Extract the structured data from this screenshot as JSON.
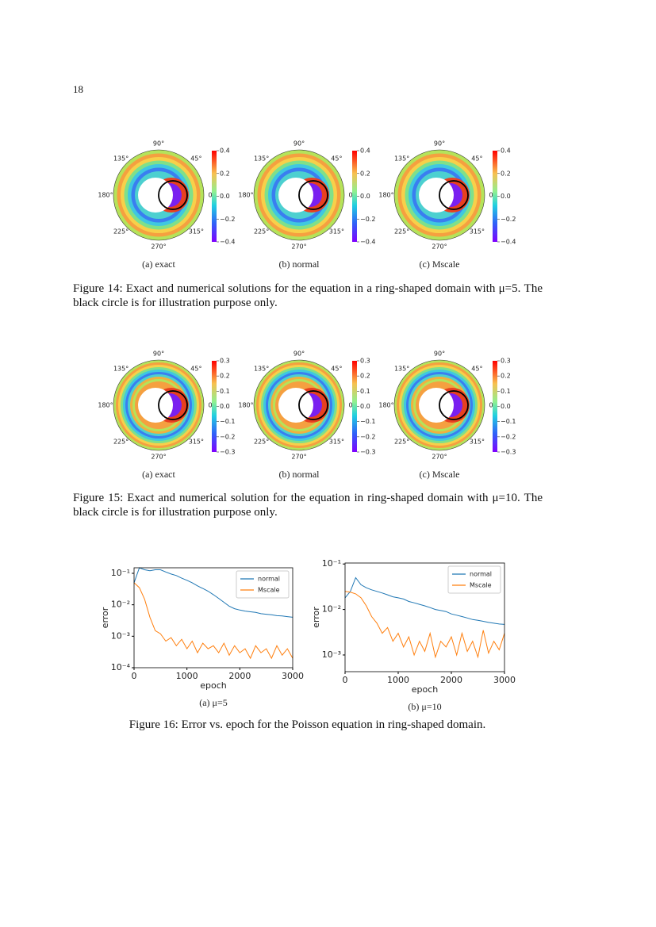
{
  "page_number": "18",
  "figure14": {
    "panels": [
      {
        "caption": "(a) exact",
        "angle_labels": [
          "0°",
          "45°",
          "90°",
          "135°",
          "180°",
          "225°",
          "270°",
          "315°"
        ],
        "colorbar": {
          "lim": [
            -0.4,
            0.4
          ],
          "ticks": [
            0.4,
            0.2,
            {
              "value": 0,
              "label": "0.0"
            },
            {
              "value": -0.2,
              "label": "−0.2"
            },
            {
              "value": -0.4,
              "label": "−0.4"
            }
          ]
        }
      },
      {
        "caption": "(b) normal",
        "angle_labels": [
          "0°",
          "45°",
          "90°",
          "135°",
          "180°",
          "225°",
          "270°",
          "315°"
        ],
        "colorbar": {
          "lim": [
            -0.4,
            0.4
          ],
          "ticks": [
            0.4,
            0.2,
            {
              "value": 0,
              "label": "0.0"
            },
            {
              "value": -0.2,
              "label": "−0.2"
            },
            {
              "value": -0.4,
              "label": "−0.4"
            }
          ]
        }
      },
      {
        "caption": "(c) Mscale",
        "angle_labels": [
          "0°",
          "45°",
          "90°",
          "135°",
          "180°",
          "225°",
          "270°",
          "315°"
        ],
        "colorbar": {
          "lim": [
            -0.4,
            0.4
          ],
          "ticks": [
            0.4,
            0.2,
            {
              "value": 0,
              "label": "0.0"
            },
            {
              "value": -0.2,
              "label": "−0.2"
            },
            {
              "value": -0.4,
              "label": "−0.4"
            }
          ]
        }
      }
    ],
    "caption": "Figure 14: Exact and numerical solutions for the equation in a ring-shaped domain with μ=5. The black circle is for illustration purpose only."
  },
  "figure15": {
    "panels": [
      {
        "caption": "(a) exact",
        "angle_labels": [
          "0°",
          "45°",
          "90°",
          "135°",
          "180°",
          "225°",
          "270°",
          "315°"
        ],
        "colorbar": {
          "lim": [
            -0.3,
            0.3
          ],
          "ticks": [
            0.3,
            0.2,
            0.1,
            {
              "value": 0,
              "label": "0.0"
            },
            {
              "value": -0.1,
              "label": "−0.1"
            },
            {
              "value": -0.2,
              "label": "−0.2"
            },
            {
              "value": -0.3,
              "label": "−0.3"
            }
          ]
        }
      },
      {
        "caption": "(b) normal",
        "angle_labels": [
          "0°",
          "45°",
          "90°",
          "135°",
          "180°",
          "225°",
          "270°",
          "315°"
        ],
        "colorbar": {
          "lim": [
            -0.3,
            0.3
          ],
          "ticks": [
            0.3,
            0.2,
            0.1,
            {
              "value": 0,
              "label": "0.0"
            },
            {
              "value": -0.1,
              "label": "−0.1"
            },
            {
              "value": -0.2,
              "label": "−0.2"
            },
            {
              "value": -0.3,
              "label": "−0.3"
            }
          ]
        }
      },
      {
        "caption": "(c) Mscale",
        "angle_labels": [
          "0°",
          "45°",
          "90°",
          "135°",
          "180°",
          "225°",
          "270°",
          "315°"
        ],
        "colorbar": {
          "lim": [
            -0.3,
            0.3
          ],
          "ticks": [
            0.3,
            0.2,
            0.1,
            {
              "value": 0,
              "label": "0.0"
            },
            {
              "value": -0.1,
              "label": "−0.1"
            },
            {
              "value": -0.2,
              "label": "−0.2"
            },
            {
              "value": -0.3,
              "label": "−0.3"
            }
          ]
        }
      }
    ],
    "caption": "Figure 15: Exact and numerical solution for the equation in ring-shaped domain with μ=10. The black circle is for illustration purpose only."
  },
  "figure16": {
    "caption": "Figure 16: Error vs. epoch for the Poisson equation in ring-shaped domain."
  },
  "chart_data": [
    {
      "type": "line",
      "caption": "(a) μ=5",
      "xlabel": "epoch",
      "ylabel": "error",
      "log_y": true,
      "legend": "upper right",
      "x": [
        0,
        100,
        200,
        300,
        400,
        500,
        600,
        700,
        800,
        900,
        1000,
        1100,
        1200,
        1300,
        1400,
        1500,
        1600,
        1700,
        1800,
        1900,
        2000,
        2100,
        2200,
        2300,
        2400,
        2500,
        2600,
        2700,
        2800,
        2900,
        3000
      ],
      "series": [
        {
          "name": "normal",
          "color": "#1f77b4",
          "values": [
            0.05,
            0.15,
            0.13,
            0.12,
            0.13,
            0.13,
            0.11,
            0.095,
            0.085,
            0.07,
            0.06,
            0.05,
            0.04,
            0.033,
            0.027,
            0.021,
            0.016,
            0.012,
            0.009,
            0.0075,
            0.0068,
            0.0063,
            0.006,
            0.0057,
            0.0052,
            0.005,
            0.0048,
            0.0045,
            0.0044,
            0.0042,
            0.004
          ]
        },
        {
          "name": "Mscale",
          "color": "#ff7f0e",
          "values": [
            0.05,
            0.035,
            0.015,
            0.004,
            0.0015,
            0.0012,
            0.0007,
            0.0009,
            0.0005,
            0.0008,
            0.0004,
            0.0007,
            0.0003,
            0.0006,
            0.0004,
            0.0005,
            0.0003,
            0.0006,
            0.00025,
            0.0005,
            0.0003,
            0.0004,
            0.0002,
            0.0005,
            0.0003,
            0.0004,
            0.0002,
            0.0005,
            0.00025,
            0.0004,
            0.0002
          ]
        }
      ],
      "xlim": [
        0,
        3000
      ],
      "xticks": [
        0,
        1000,
        2000,
        3000
      ],
      "ylim": [
        0.0001,
        0.15
      ],
      "yticks": [
        {
          "value": 0.0001,
          "label": "10⁻⁴"
        },
        {
          "value": 0.001,
          "label": "10⁻³"
        },
        {
          "value": 0.01,
          "label": "10⁻²"
        },
        {
          "value": 0.1,
          "label": "10⁻¹"
        }
      ]
    },
    {
      "type": "line",
      "caption": "(b) μ=10",
      "xlabel": "epoch",
      "ylabel": "error",
      "log_y": true,
      "legend": "upper right",
      "x": [
        0,
        100,
        200,
        300,
        400,
        500,
        600,
        700,
        800,
        900,
        1000,
        1100,
        1200,
        1300,
        1400,
        1500,
        1600,
        1700,
        1800,
        1900,
        2000,
        2100,
        2200,
        2300,
        2400,
        2500,
        2600,
        2700,
        2800,
        2900,
        3000
      ],
      "series": [
        {
          "name": "normal",
          "color": "#1f77b4",
          "values": [
            0.018,
            0.025,
            0.05,
            0.035,
            0.03,
            0.027,
            0.025,
            0.023,
            0.021,
            0.019,
            0.018,
            0.017,
            0.015,
            0.014,
            0.013,
            0.012,
            0.011,
            0.01,
            0.0095,
            0.009,
            0.008,
            0.0075,
            0.007,
            0.0065,
            0.006,
            0.0058,
            0.0055,
            0.0052,
            0.005,
            0.0048,
            0.0047
          ]
        },
        {
          "name": "Mscale",
          "color": "#ff7f0e",
          "values": [
            0.025,
            0.024,
            0.022,
            0.018,
            0.012,
            0.007,
            0.005,
            0.003,
            0.004,
            0.002,
            0.003,
            0.0015,
            0.0025,
            0.001,
            0.002,
            0.0012,
            0.003,
            0.0009,
            0.002,
            0.0015,
            0.0025,
            0.001,
            0.003,
            0.0012,
            0.002,
            0.0009,
            0.0035,
            0.0011,
            0.002,
            0.0013,
            0.003
          ]
        }
      ],
      "xlim": [
        0,
        3000
      ],
      "xticks": [
        0,
        1000,
        2000,
        3000
      ],
      "ylim": [
        0.00043,
        0.105
      ],
      "yticks": [
        {
          "value": 0.001,
          "label": "10⁻³"
        },
        {
          "value": 0.01,
          "label": "10⁻²"
        },
        {
          "value": 0.1,
          "label": "10⁻¹"
        }
      ]
    }
  ]
}
